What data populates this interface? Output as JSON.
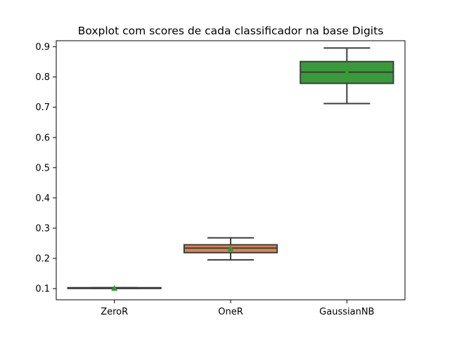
{
  "chart_data": {
    "type": "boxplot",
    "title": "Boxplot com scores de cada classificador na base Digits",
    "xlabel": "",
    "ylabel": "",
    "categories": [
      "ZeroR",
      "OneR",
      "GaussianNB"
    ],
    "ylim": [
      0.063,
      0.92
    ],
    "yticks": [
      0.1,
      0.2,
      0.3,
      0.4,
      0.5,
      0.6,
      0.7,
      0.8,
      0.9
    ],
    "ytick_labels": [
      "0.1",
      "0.2",
      "0.3",
      "0.4",
      "0.5",
      "0.6",
      "0.7",
      "0.8",
      "0.9"
    ],
    "grid": false,
    "mean_marker": "triangle",
    "mean_color": "#2ca02c",
    "boxes": [
      {
        "category": "ZeroR",
        "whisker_low": 0.101,
        "q1": 0.101,
        "median": 0.101,
        "q3": 0.103,
        "whisker_high": 0.103,
        "mean": 0.101,
        "color": "#1f77b4"
      },
      {
        "category": "OneR",
        "whisker_low": 0.195,
        "q1": 0.219,
        "median": 0.234,
        "q3": 0.245,
        "whisker_high": 0.268,
        "mean": 0.232,
        "color": "#dd8452"
      },
      {
        "category": "GaussianNB",
        "whisker_low": 0.712,
        "q1": 0.779,
        "median": 0.816,
        "q3": 0.851,
        "whisker_high": 0.896,
        "mean": 0.815,
        "color": "#3a9a3a"
      }
    ]
  }
}
